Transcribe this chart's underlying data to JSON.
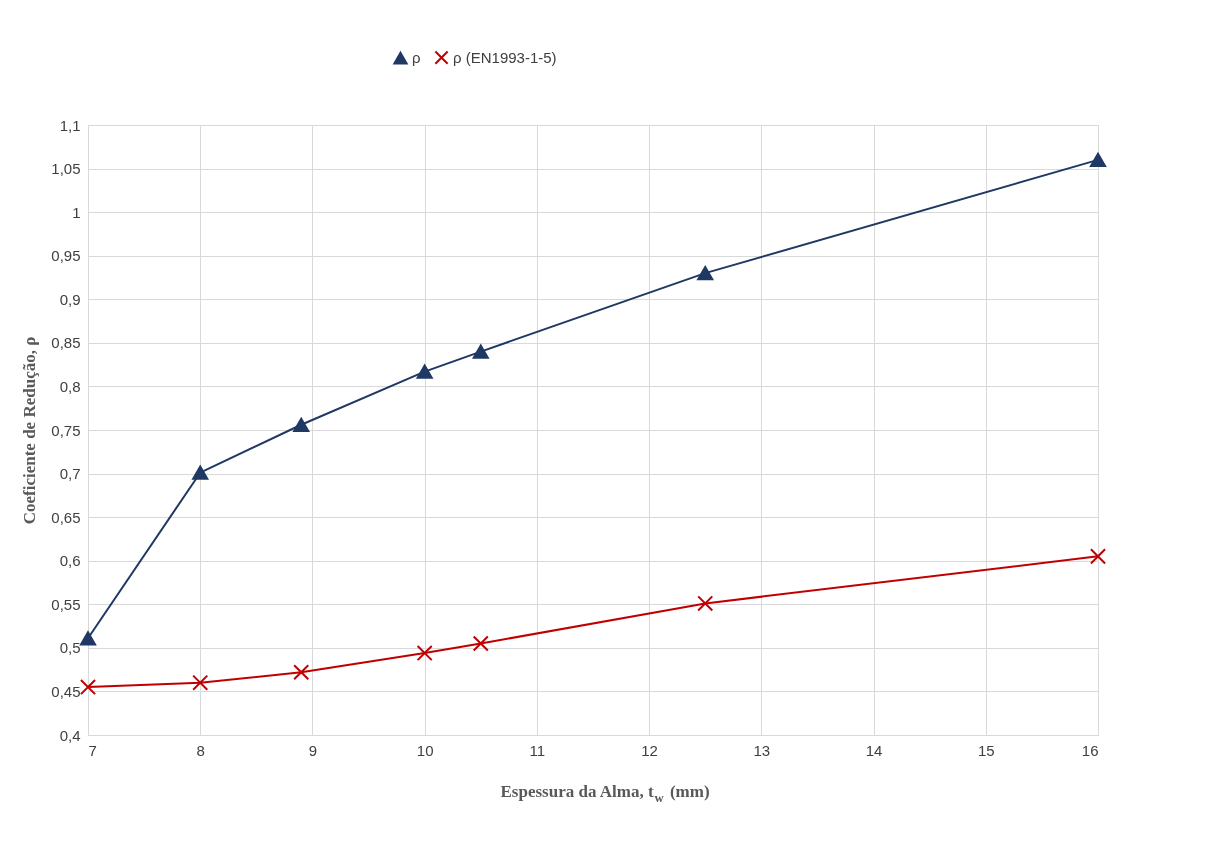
{
  "chart_data": {
    "type": "line",
    "xlabel": "Espessura da Alma, t$_{w}$ (mm)",
    "ylabel": "Coeficiente de Redução, ρ",
    "series": [
      {
        "name": "ρ",
        "color": "#1f3864",
        "marker": "triangle",
        "x": [
          7,
          8,
          8.9,
          10,
          10.5,
          12.5,
          16
        ],
        "values": [
          0.511,
          0.701,
          0.756,
          0.817,
          0.84,
          0.93,
          1.06
        ]
      },
      {
        "name": "ρ (EN1993-1-5)",
        "color": "#c00000",
        "marker": "cross",
        "x": [
          7,
          8,
          8.9,
          10,
          10.5,
          12.5,
          16
        ],
        "values": [
          0.455,
          0.46,
          0.472,
          0.494,
          0.505,
          0.551,
          0.605
        ]
      }
    ],
    "xlim": [
      7,
      16
    ],
    "xticks": [
      7,
      8,
      9,
      10,
      11,
      12,
      13,
      14,
      15,
      16
    ],
    "ylim": [
      0.4,
      1.1
    ],
    "yticks": [
      {
        "value": 0.4,
        "label": "0,4"
      },
      {
        "value": 0.45,
        "label": "0,45"
      },
      {
        "value": 0.5,
        "label": "0,5"
      },
      {
        "value": 0.55,
        "label": "0,55"
      },
      {
        "value": 0.6,
        "label": "0,6"
      },
      {
        "value": 0.65,
        "label": "0,65"
      },
      {
        "value": 0.7,
        "label": "0,7"
      },
      {
        "value": 0.75,
        "label": "0,75"
      },
      {
        "value": 0.8,
        "label": "0,8"
      },
      {
        "value": 0.85,
        "label": "0,85"
      },
      {
        "value": 0.9,
        "label": "0,9"
      },
      {
        "value": 0.95,
        "label": "0,95"
      },
      {
        "value": 1.0,
        "label": "1"
      },
      {
        "value": 1.05,
        "label": "1,05"
      },
      {
        "value": 1.1,
        "label": "1,1"
      }
    ],
    "grid": true,
    "legend": "top",
    "line_style": "solid"
  }
}
